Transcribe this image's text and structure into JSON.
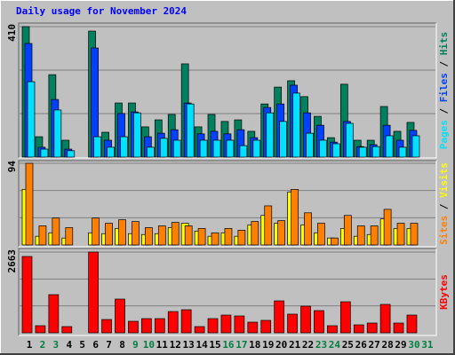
{
  "chart_data": [
    {
      "type": "bar",
      "title": "Daily usage for November 2024",
      "legend_separator": " / ",
      "categories": [
        "1",
        "2",
        "3",
        "4",
        "5",
        "6",
        "7",
        "8",
        "9",
        "10",
        "11",
        "12",
        "13",
        "14",
        "15",
        "16",
        "17",
        "18",
        "19",
        "20",
        "21",
        "22",
        "23",
        "24",
        "25",
        "26",
        "27",
        "28",
        "29",
        "30",
        "31"
      ],
      "category_colors": [
        "#000000",
        "#008040",
        "#008040",
        "#000000",
        "#000000",
        "#000000",
        "#000000",
        "#000000",
        "#008040",
        "#008040",
        "#000000",
        "#000000",
        "#000000",
        "#000000",
        "#000000",
        "#008040",
        "#008040",
        "#000000",
        "#000000",
        "#000000",
        "#000000",
        "#000000",
        "#008040",
        "#008040",
        "#000000",
        "#000000",
        "#000000",
        "#000000",
        "#000000",
        "#008040",
        "#008040"
      ],
      "ylim": [
        0,
        410
      ],
      "yticks": [
        410
      ],
      "series": [
        {
          "name": "Hits",
          "color": "#00805c",
          "values": [
            410,
            64,
            259,
            53,
            0,
            396,
            78,
            170,
            170,
            95,
            117,
            134,
            293,
            95,
            134,
            112,
            117,
            81,
            167,
            220,
            240,
            190,
            128,
            61,
            229,
            53,
            53,
            159,
            81,
            109,
            0
          ]
        },
        {
          "name": "Files",
          "color": "#0040ff",
          "values": [
            357,
            31,
            181,
            25,
            0,
            343,
            53,
            137,
            142,
            64,
            75,
            86,
            170,
            73,
            81,
            73,
            86,
            61,
            156,
            167,
            226,
            139,
            100,
            47,
            112,
            33,
            39,
            100,
            53,
            84,
            0
          ]
        },
        {
          "name": "Pages",
          "color": "#00e0ff",
          "values": [
            237,
            25,
            148,
            20,
            0,
            64,
            31,
            64,
            139,
            31,
            59,
            53,
            167,
            53,
            53,
            53,
            36,
            53,
            139,
            112,
            201,
            75,
            53,
            42,
            106,
            31,
            33,
            67,
            31,
            67,
            0
          ]
        }
      ]
    },
    {
      "type": "bar",
      "ylim": [
        0,
        94
      ],
      "yticks": [
        94
      ],
      "series": [
        {
          "name": "Visits",
          "color": "#ffff00",
          "values": [
            64,
            10,
            14,
            8,
            0,
            14,
            13,
            19,
            13,
            12,
            13,
            20,
            25,
            16,
            10,
            14,
            10,
            23,
            34,
            25,
            61,
            23,
            14,
            8,
            19,
            10,
            12,
            30,
            19,
            19,
            0
          ]
        },
        {
          "name": "Sites",
          "color": "#ff8000",
          "values": [
            94,
            22,
            31,
            20,
            0,
            31,
            25,
            29,
            27,
            20,
            22,
            26,
            22,
            19,
            14,
            19,
            17,
            27,
            45,
            28,
            64,
            37,
            25,
            8,
            34,
            22,
            22,
            41,
            25,
            25,
            0
          ]
        }
      ]
    },
    {
      "type": "bar",
      "ylim": [
        0,
        2663
      ],
      "yticks": [
        2663
      ],
      "series": [
        {
          "name": "KBytes",
          "color": "#ff0000",
          "values": [
            2517,
            234,
            1258,
            205,
            0,
            2663,
            439,
            1112,
            380,
            468,
            468,
            702,
            761,
            205,
            468,
            585,
            556,
            351,
            410,
            1053,
            615,
            878,
            732,
            234,
            1024,
            263,
            322,
            937,
            322,
            585,
            0
          ]
        }
      ]
    }
  ]
}
